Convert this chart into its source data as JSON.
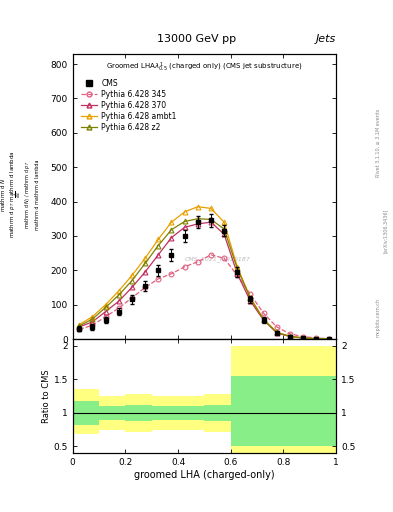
{
  "title_top": "13000 GeV pp",
  "title_right": "Jets",
  "xlabel": "groomed LHA (charged-only)",
  "ylabel_ratio": "Ratio to CMS",
  "watermark": "CMS_2021_I1920187",
  "rivet_text": "Rivet 3.1.10, ≥ 3.1M events",
  "arxiv_text": "[arXiv:1306.3436]",
  "mcplots_text": "mcplots.cern.ch",
  "x_bins": [
    0.0,
    0.05,
    0.1,
    0.15,
    0.2,
    0.25,
    0.3,
    0.35,
    0.4,
    0.45,
    0.5,
    0.55,
    0.6,
    0.65,
    0.7,
    0.75,
    0.8,
    0.85,
    0.9,
    0.95,
    1.0
  ],
  "cms_data": [
    30,
    35,
    55,
    80,
    115,
    155,
    200,
    245,
    300,
    340,
    345,
    315,
    195,
    115,
    55,
    18,
    7,
    3,
    1,
    1
  ],
  "cms_err": [
    8,
    8,
    9,
    10,
    12,
    14,
    16,
    18,
    18,
    18,
    18,
    16,
    14,
    10,
    8,
    4,
    2,
    1,
    1,
    1
  ],
  "py345_data": [
    28,
    40,
    65,
    90,
    120,
    150,
    175,
    190,
    210,
    225,
    245,
    235,
    185,
    130,
    75,
    35,
    15,
    7,
    3,
    1
  ],
  "py370_data": [
    35,
    50,
    80,
    110,
    150,
    195,
    245,
    295,
    325,
    335,
    340,
    305,
    190,
    110,
    55,
    18,
    7,
    3,
    1,
    1
  ],
  "py_ambt1_data": [
    42,
    65,
    100,
    140,
    185,
    235,
    290,
    340,
    370,
    385,
    380,
    340,
    210,
    120,
    58,
    20,
    8,
    3,
    1,
    1
  ],
  "py_z2_data": [
    38,
    58,
    92,
    128,
    170,
    220,
    272,
    318,
    342,
    350,
    348,
    320,
    205,
    118,
    56,
    19,
    8,
    3,
    1,
    1
  ],
  "ratio_x_bins": [
    0.0,
    0.1,
    0.2,
    0.3,
    0.4,
    0.5,
    0.6,
    0.7,
    1.0
  ],
  "ratio_green_lo": [
    0.82,
    0.9,
    0.88,
    0.9,
    0.9,
    0.88,
    0.5,
    0.5
  ],
  "ratio_green_hi": [
    1.18,
    1.1,
    1.12,
    1.1,
    1.1,
    1.12,
    1.55,
    1.55
  ],
  "ratio_yellow_lo": [
    0.68,
    0.75,
    0.72,
    0.75,
    0.75,
    0.72,
    0.38,
    0.38
  ],
  "ratio_yellow_hi": [
    1.35,
    1.25,
    1.28,
    1.25,
    1.25,
    1.28,
    2.0,
    2.0
  ],
  "ylim_main": [
    0,
    830
  ],
  "ylim_ratio": [
    0.4,
    2.1
  ],
  "color_cms": "#000000",
  "color_345": "#e06080",
  "color_370": "#c03060",
  "color_ambt1": "#e8a000",
  "color_z2": "#808000",
  "color_green": "#88ee88",
  "color_yellow": "#ffff80",
  "main_yticks": [
    0,
    100,
    200,
    300,
    400,
    500,
    600,
    700,
    800
  ],
  "ratio_yticks": [
    0.5,
    1.0,
    1.5,
    2.0
  ]
}
